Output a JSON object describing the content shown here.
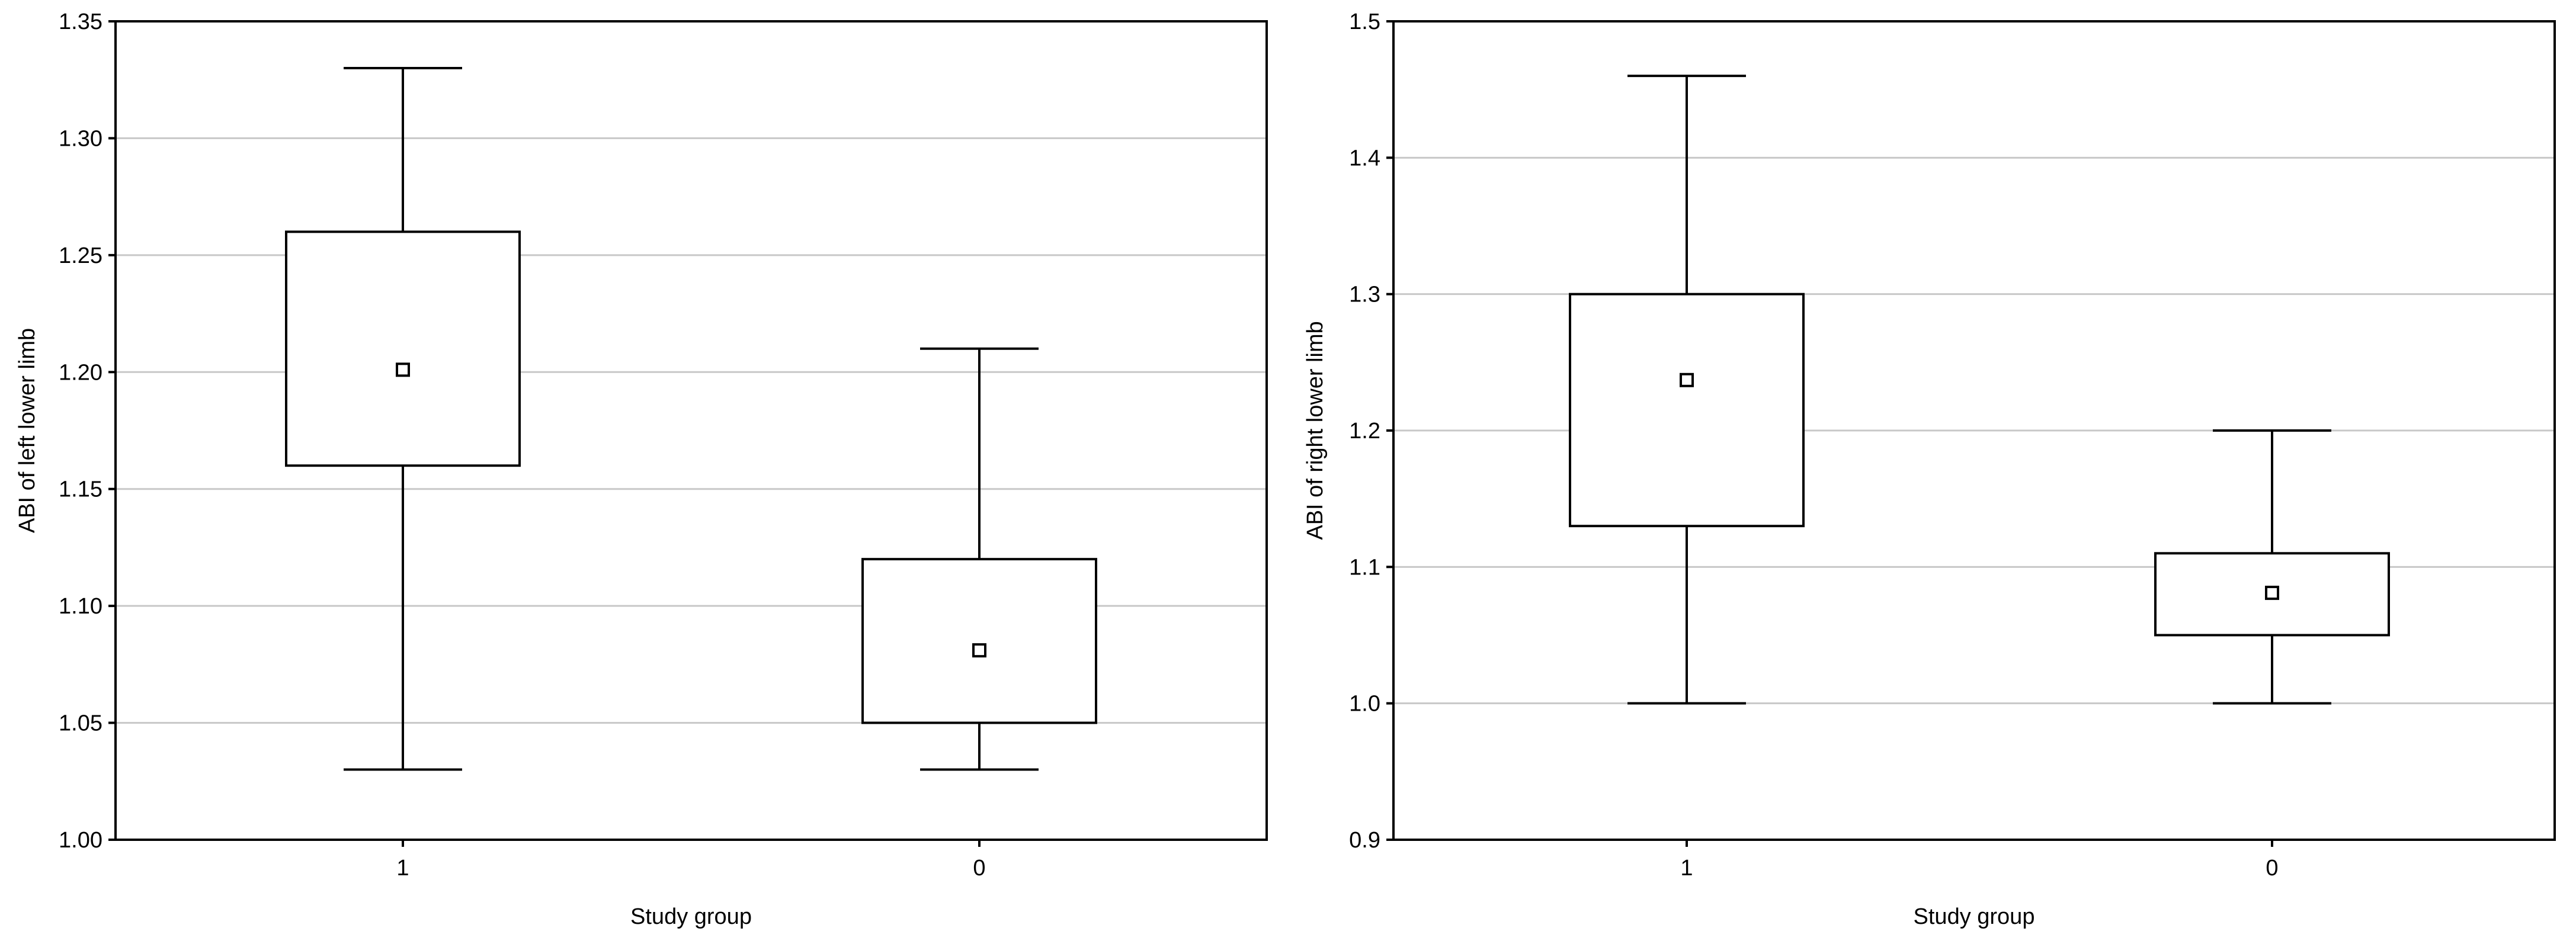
{
  "chart_data": [
    {
      "type": "box",
      "xlabel": "Study group",
      "ylabel": "ABI of left lower limb",
      "ylim": [
        1.0,
        1.35
      ],
      "yticks": [
        1.0,
        1.05,
        1.1,
        1.15,
        1.2,
        1.25,
        1.3,
        1.35
      ],
      "ytick_labels": [
        "1.00",
        "1.05",
        "1.10",
        "1.15",
        "1.20",
        "1.25",
        "1.30",
        "1.35"
      ],
      "grid": true,
      "categories": [
        "1",
        "0"
      ],
      "boxes": [
        {
          "category": "1",
          "whisker_low": 1.03,
          "q1": 1.16,
          "mean": 1.201,
          "q3": 1.26,
          "whisker_high": 1.33
        },
        {
          "category": "0",
          "whisker_low": 1.03,
          "q1": 1.05,
          "mean": 1.081,
          "q3": 1.12,
          "whisker_high": 1.21
        }
      ]
    },
    {
      "type": "box",
      "xlabel": "Study group",
      "ylabel": "ABI of right lower limb",
      "ylim": [
        0.9,
        1.5
      ],
      "yticks": [
        0.9,
        1.0,
        1.1,
        1.2,
        1.3,
        1.4,
        1.5
      ],
      "ytick_labels": [
        "0.9",
        "1.0",
        "1.1",
        "1.2",
        "1.3",
        "1.4",
        "1.5"
      ],
      "grid": true,
      "categories": [
        "1",
        "0"
      ],
      "boxes": [
        {
          "category": "1",
          "whisker_low": 1.0,
          "q1": 1.13,
          "mean": 1.237,
          "q3": 1.3,
          "whisker_high": 1.46
        },
        {
          "category": "0",
          "whisker_low": 1.0,
          "q1": 1.05,
          "mean": 1.081,
          "q3": 1.11,
          "whisker_high": 1.2
        }
      ]
    }
  ]
}
